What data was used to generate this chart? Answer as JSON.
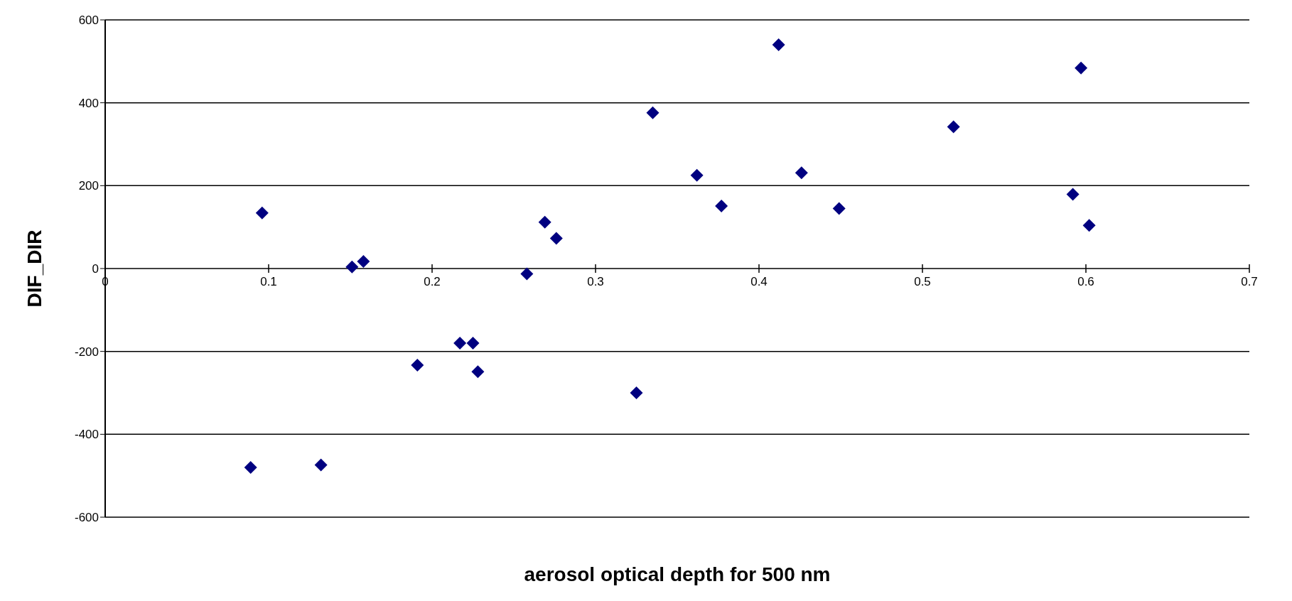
{
  "chart_data": {
    "type": "scatter",
    "xlabel": "aerosol optical depth for 500 nm",
    "ylabel": "DIF_DIR",
    "x": [
      0.089,
      0.096,
      0.132,
      0.151,
      0.158,
      0.191,
      0.217,
      0.225,
      0.228,
      0.258,
      0.269,
      0.276,
      0.325,
      0.335,
      0.362,
      0.377,
      0.412,
      0.426,
      0.449,
      0.519,
      0.592,
      0.597,
      0.602
    ],
    "series": [
      {
        "color": "#000080",
        "values": [
          -480,
          134,
          -474,
          4,
          17,
          -233,
          -180,
          -180,
          -249,
          -13,
          112,
          73,
          -300,
          376,
          225,
          151,
          540,
          231,
          145,
          342,
          179,
          484,
          104
        ]
      }
    ],
    "xlim": [
      0,
      0.7
    ],
    "xticks": [
      0,
      0.1,
      0.2,
      0.3,
      0.4,
      0.5,
      0.6,
      0.7
    ],
    "ylim": [
      -600,
      600
    ],
    "yticks": [
      -600,
      -400,
      -200,
      0,
      200,
      400,
      600
    ],
    "grid": "y",
    "marker": "diamond"
  }
}
